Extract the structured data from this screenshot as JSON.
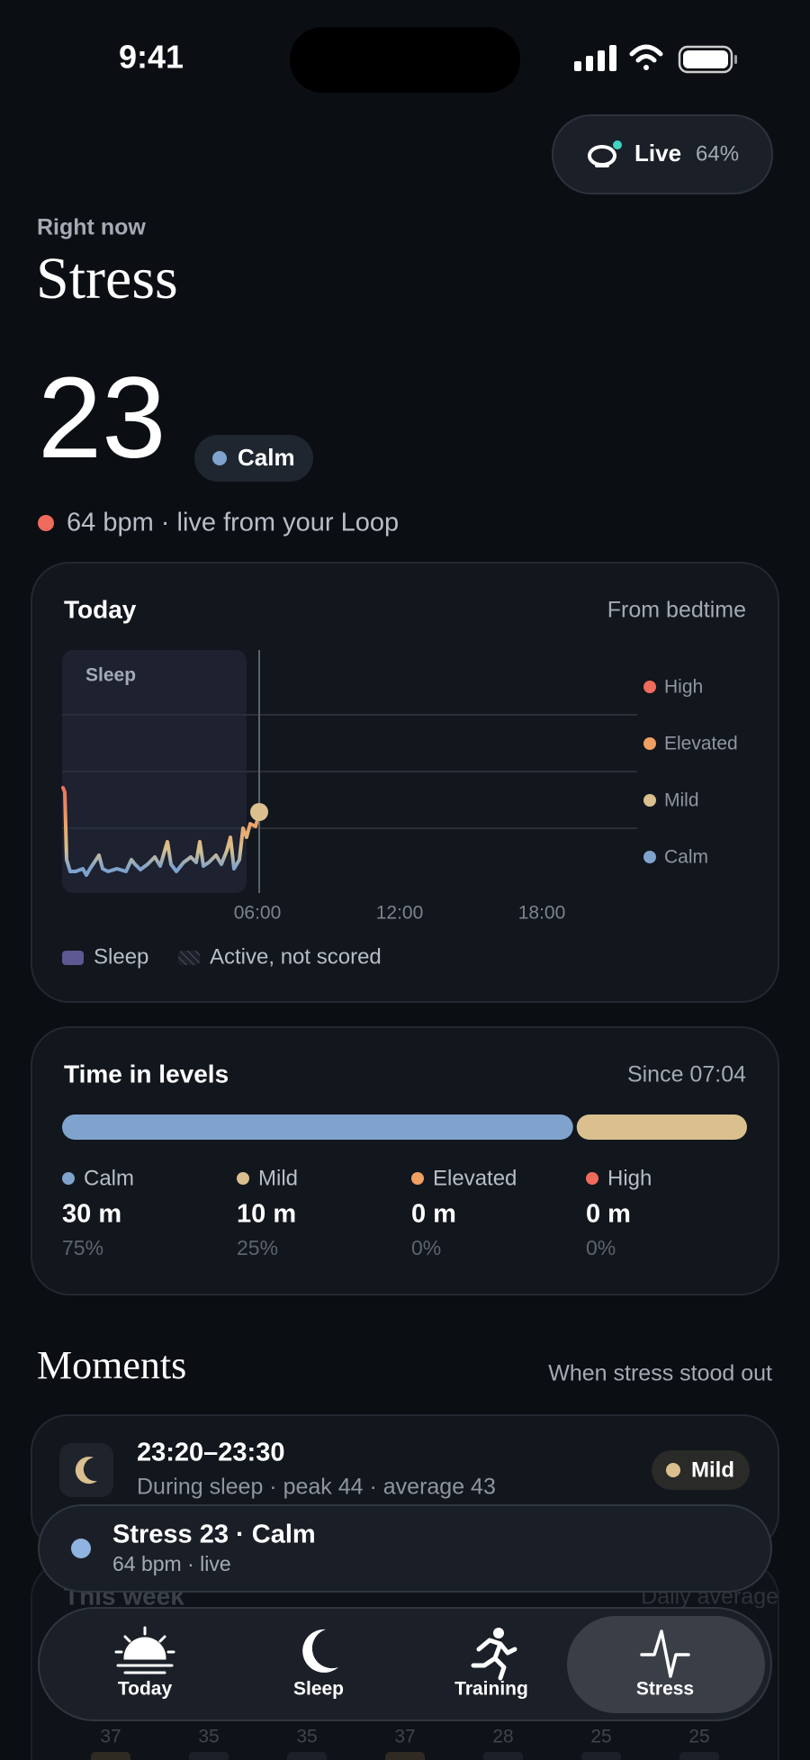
{
  "status_bar": {
    "time": "9:41"
  },
  "live_pill": {
    "label": "Live",
    "battery": "64%"
  },
  "header": {
    "eyebrow": "Right now",
    "title": "Stress"
  },
  "current": {
    "score": "23",
    "level": "Calm",
    "heart_rate": "64 bpm · live from your Loop"
  },
  "today_card": {
    "title": "Today",
    "subtitle": "From bedtime",
    "sleep_label": "Sleep",
    "levels": [
      "High",
      "Elevated",
      "Mild",
      "Calm"
    ],
    "x_labels": [
      "06:00",
      "12:00",
      "18:00"
    ],
    "legend": [
      "Sleep",
      "Active, not scored"
    ]
  },
  "levels_card": {
    "title": "Time in levels",
    "subtitle": "Since 07:04",
    "items": [
      {
        "name": "Calm",
        "duration": "30 m",
        "percent_label": "75%",
        "percent": 75
      },
      {
        "name": "Mild",
        "duration": "10 m",
        "percent_label": "25%",
        "percent": 25
      },
      {
        "name": "Elevated",
        "duration": "0 m",
        "percent_label": "0%",
        "percent": 0
      },
      {
        "name": "High",
        "duration": "0 m",
        "percent_label": "0%",
        "percent": 0
      }
    ]
  },
  "moments": {
    "title": "Moments",
    "subtitle": "When stress stood out",
    "items": [
      {
        "time": "23:20–23:30",
        "detail": "During sleep · peak 44 · average 43",
        "level": "Mild"
      }
    ]
  },
  "week_card": {
    "title": "This week",
    "subtitle": "Daily average",
    "values": [
      "37",
      "35",
      "35",
      "37",
      "28",
      "25",
      "25"
    ]
  },
  "mini_player": {
    "title": "Stress 23 · Calm",
    "subtitle": "64 bpm · live"
  },
  "tab_bar": {
    "tabs": [
      "Today",
      "Sleep",
      "Training",
      "Stress"
    ],
    "active": 3
  }
}
